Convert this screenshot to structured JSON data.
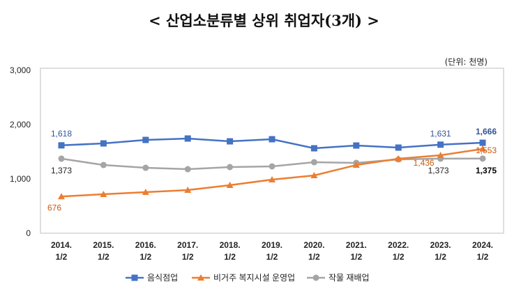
{
  "chart_data": {
    "type": "line",
    "title": "< 산업소분류별 상위 취업자(3개) >",
    "unit": "(단위: 천명)",
    "categories": [
      [
        "2014.",
        "1/2"
      ],
      [
        "2015.",
        "1/2"
      ],
      [
        "2016.",
        "1/2"
      ],
      [
        "2017.",
        "1/2"
      ],
      [
        "2018.",
        "1/2"
      ],
      [
        "2019.",
        "1/2"
      ],
      [
        "2020.",
        "1/2"
      ],
      [
        "2021.",
        "1/2"
      ],
      [
        "2022.",
        "1/2"
      ],
      [
        "2023.",
        "1/2"
      ],
      [
        "2024.",
        "1/2"
      ]
    ],
    "ylim": [
      0,
      3000
    ],
    "yticks": [
      "0",
      "1,000",
      "2,000",
      "3,000"
    ],
    "grid": false,
    "legend": "bottom",
    "series": [
      {
        "name": "음식점업",
        "color": "#4472C4",
        "marker": "square",
        "values": [
          1618,
          1654,
          1718,
          1744,
          1692,
          1731,
          1564,
          1615,
          1577,
          1631,
          1666
        ],
        "labels": [
          {
            "i": 0,
            "text": "1,618"
          },
          {
            "i": 9,
            "text": "1,631"
          },
          {
            "i": 10,
            "text": "1,666",
            "bold": true
          }
        ]
      },
      {
        "name": "비거주 복지시설 운영업",
        "color": "#ED7D31",
        "marker": "triangle",
        "values": [
          676,
          718,
          756,
          795,
          885,
          987,
          1064,
          1256,
          1372,
          1436,
          1553
        ],
        "labels": [
          {
            "i": 0,
            "text": "676"
          },
          {
            "i": 9,
            "text": "1,436"
          },
          {
            "i": 10,
            "text": "1,553"
          }
        ]
      },
      {
        "name": "작물 재배업",
        "color": "#A5A5A5",
        "marker": "circle",
        "values": [
          1373,
          1256,
          1205,
          1179,
          1218,
          1231,
          1308,
          1295,
          1359,
          1373,
          1375
        ],
        "labels": [
          {
            "i": 0,
            "text": "1,373"
          },
          {
            "i": 9,
            "text": "1,373"
          },
          {
            "i": 10,
            "text": "1,375",
            "bold": true
          }
        ]
      }
    ]
  }
}
